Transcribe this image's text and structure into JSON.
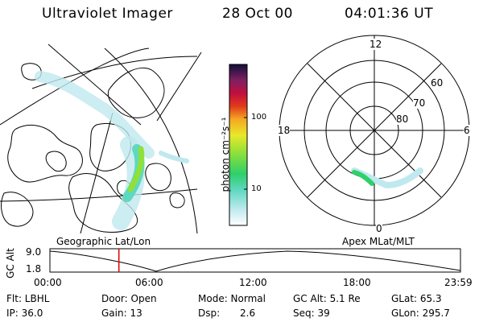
{
  "header": {
    "title": "Ultraviolet Imager",
    "date": "28 Oct 00",
    "time": "04:01:36 UT"
  },
  "colorbar": {
    "label": "photon cm⁻²s⁻¹",
    "ticks": [
      "100",
      "10"
    ]
  },
  "polar_plot": {
    "mlt_labels": [
      "12",
      "18",
      "6",
      "0"
    ],
    "mlat_labels": [
      "60",
      "70",
      "80"
    ]
  },
  "map_titles": {
    "left": "Geographic Lat/Lon",
    "right": "Apex MLat/MLT"
  },
  "timeline": {
    "axis_label": "GC Alt",
    "y_ticks": [
      "9.0",
      "1.8"
    ],
    "x_ticks": [
      "00:00",
      "06:00",
      "12:00",
      "18:00",
      "23:59"
    ],
    "current_time_fraction": 0.168,
    "colors": {
      "cursor": "#e00000",
      "curve": "#000000"
    }
  },
  "status": {
    "filter": "Flt: LBHL",
    "ip": "IP: 36.0",
    "door": "Door: Open",
    "gain": "Gain: 13",
    "mode": "Mode: Normal",
    "dsp_label": "Dsp:",
    "dsp_value": "2.6",
    "gc_alt": "GC Alt: 5.1 Re",
    "seq": "Seq: 39",
    "glat": "GLat: 65.3",
    "glon": "GLon: 295.7"
  }
}
